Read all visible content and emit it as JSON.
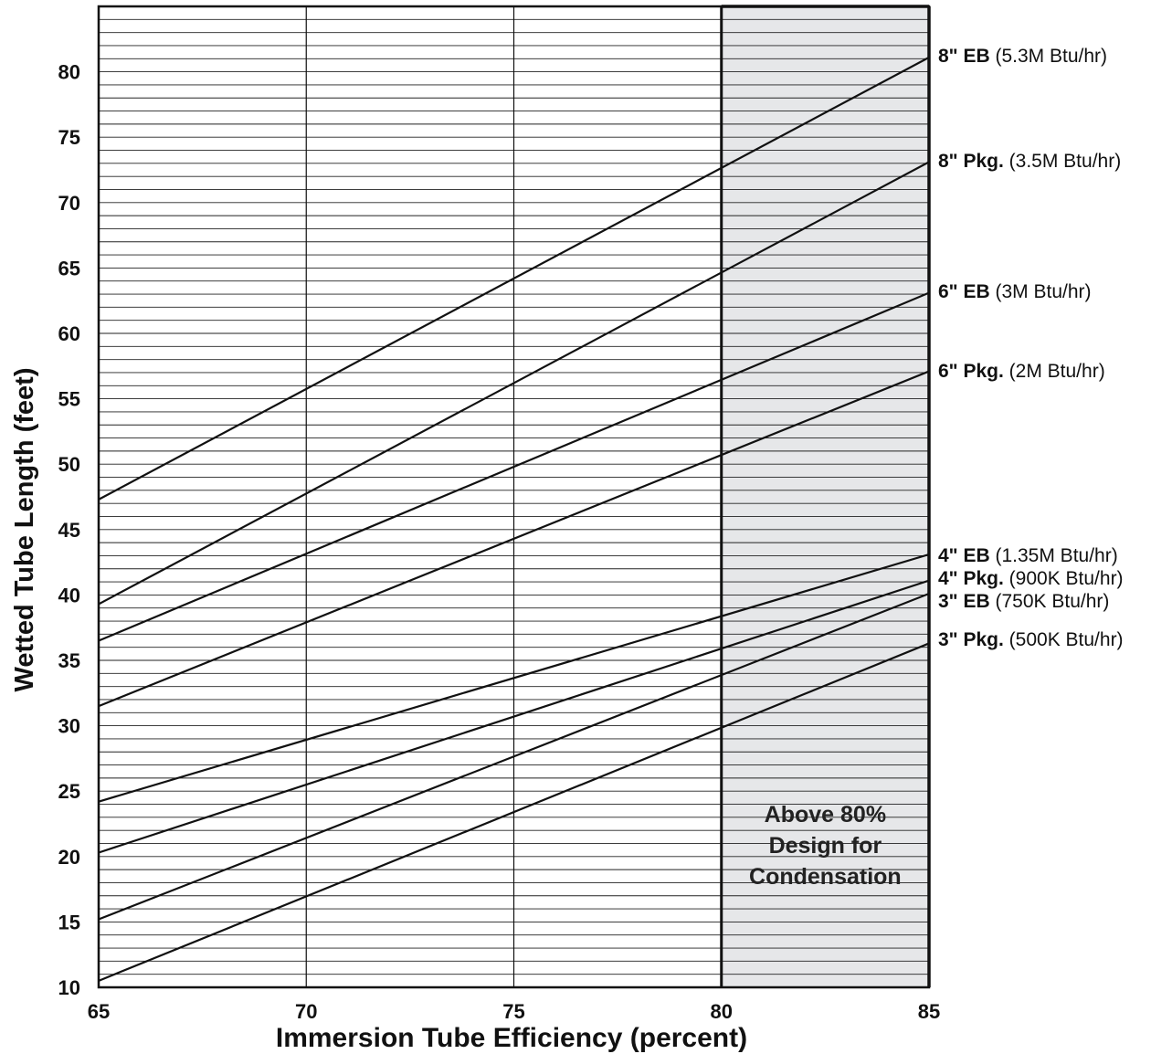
{
  "chart_data": {
    "type": "line",
    "xlabel": "Immersion Tube Efficiency (percent)",
    "ylabel": "Wetted Tube Length (feet)",
    "xlim": [
      65,
      85
    ],
    "ylim": [
      10,
      85
    ],
    "x_ticks": [
      65,
      70,
      75,
      80,
      85
    ],
    "y_ticks": [
      10,
      15,
      20,
      25,
      30,
      35,
      40,
      45,
      50,
      55,
      60,
      65,
      70,
      75,
      80
    ],
    "grid": {
      "vertical_every": 5,
      "horizontal_every": 1
    },
    "shaded_region": {
      "x_from": 80,
      "x_to": 85,
      "color": "#e6e7e9",
      "text_lines": [
        "Above 80%",
        "Design for",
        "Condensation"
      ]
    },
    "series": [
      {
        "bold": "8\" EB",
        "rest": " (5.3M Btu/hr)",
        "x": [
          65,
          85
        ],
        "y": [
          47.3,
          81.1
        ]
      },
      {
        "bold": "8\" Pkg.",
        "rest": " (3.5M Btu/hr)",
        "x": [
          65,
          85
        ],
        "y": [
          39.3,
          73.1
        ]
      },
      {
        "bold": "6\" EB",
        "rest": " (3M Btu/hr)",
        "x": [
          65,
          85
        ],
        "y": [
          36.5,
          63.1
        ]
      },
      {
        "bold": "6\" Pkg.",
        "rest": "  (2M Btu/hr)",
        "x": [
          65,
          85
        ],
        "y": [
          31.5,
          57.1
        ]
      },
      {
        "bold": "4\" EB",
        "rest": " (1.35M Btu/hr)",
        "x": [
          65,
          85
        ],
        "y": [
          24.2,
          43.1
        ]
      },
      {
        "bold": "4\" Pkg.",
        "rest": " (900K Btu/hr)",
        "x": [
          65,
          85
        ],
        "y": [
          20.3,
          41.1
        ]
      },
      {
        "bold": "3\" EB",
        "rest": " (750K Btu/hr)",
        "x": [
          65,
          85
        ],
        "y": [
          15.2,
          40.1
        ]
      },
      {
        "bold": "3\" Pkg.",
        "rest": " (500K Btu/hr)",
        "x": [
          65,
          85
        ],
        "y": [
          10.5,
          36.3
        ]
      }
    ],
    "colors": {
      "line": "#111111",
      "grid": "#222222",
      "region": "#e6e7e9"
    }
  }
}
